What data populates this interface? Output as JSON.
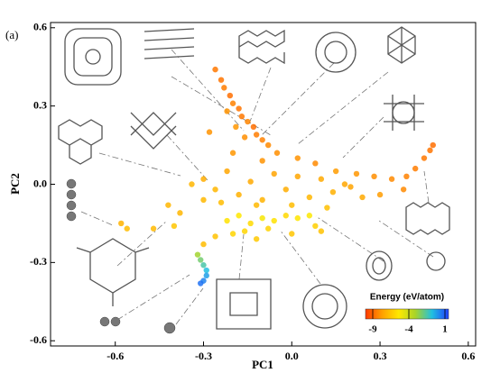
{
  "chart_data": {
    "type": "scatter",
    "panel_label": "(a)",
    "xlabel": "PC1",
    "ylabel": "PC2",
    "xlim": [
      -0.82,
      0.625
    ],
    "ylim": [
      -0.62,
      0.62
    ],
    "xticks": [
      -0.6,
      -0.3,
      {
        "value": 0,
        "label": "0.0"
      },
      0.3,
      0.6
    ],
    "yticks": [
      -0.6,
      -0.3,
      {
        "value": 0,
        "label": "0.0"
      },
      0.3,
      0.6
    ],
    "colorbar": {
      "label": "Energy (eV/atom)",
      "clim": [
        -10,
        1.5
      ],
      "ticks": [
        -9,
        -4,
        1
      ],
      "colormap": [
        "#ff3a00",
        "#ffa000",
        "#ffe800",
        "#a8d428",
        "#20c0e0",
        "#2040ff"
      ]
    },
    "x": [
      -0.26,
      -0.24,
      -0.23,
      -0.21,
      -0.2,
      -0.18,
      -0.17,
      -0.15,
      -0.13,
      -0.12,
      -0.1,
      -0.08,
      -0.22,
      -0.19,
      -0.16,
      -0.28,
      -0.05,
      0.02,
      0.08,
      -0.2,
      -0.1,
      0.15,
      0.22,
      0.28,
      0.34,
      0.39,
      0.42,
      0.45,
      0.47,
      0.48,
      0.38,
      0.3,
      0.2,
      -0.3,
      -0.26,
      -0.22,
      -0.18,
      -0.14,
      -0.1,
      -0.06,
      -0.02,
      0.02,
      0.06,
      0.1,
      0.14,
      0.18,
      0.24,
      -0.24,
      -0.12,
      0,
      0.12,
      -0.34,
      -0.3,
      -0.22,
      -0.18,
      -0.14,
      -0.1,
      -0.06,
      -0.02,
      0.02,
      0.06,
      -0.16,
      -0.08,
      0.08,
      -0.2,
      -0.26,
      -0.3,
      -0.12,
      0,
      0.1,
      -0.38,
      -0.42,
      -0.56,
      -0.58,
      -0.47,
      -0.4,
      -0.32,
      -0.31,
      -0.3,
      -0.29,
      -0.29,
      -0.3,
      -0.31
    ],
    "y": [
      0.44,
      0.4,
      0.37,
      0.34,
      0.31,
      0.29,
      0.26,
      0.24,
      0.22,
      0.19,
      0.17,
      0.15,
      0.28,
      0.22,
      0.18,
      0.2,
      0.12,
      0.1,
      0.08,
      0.12,
      0.09,
      0.05,
      0.04,
      0.03,
      0.02,
      0.03,
      0.06,
      0.1,
      0.13,
      0.15,
      -0.02,
      -0.04,
      -0.01,
      0.02,
      -0.02,
      0.05,
      -0.04,
      0.01,
      -0.06,
      0.04,
      -0.02,
      0.03,
      -0.05,
      0.02,
      -0.03,
      0,
      -0.05,
      -0.07,
      -0.08,
      -0.08,
      -0.09,
      0,
      -0.06,
      -0.14,
      -0.12,
      -0.15,
      -0.13,
      -0.14,
      -0.12,
      -0.13,
      -0.12,
      -0.18,
      -0.17,
      -0.16,
      -0.19,
      -0.2,
      -0.23,
      -0.21,
      -0.19,
      -0.18,
      -0.11,
      -0.08,
      -0.17,
      -0.15,
      -0.17,
      -0.16,
      -0.27,
      -0.29,
      -0.31,
      -0.33,
      -0.35,
      -0.37,
      -0.38
    ],
    "c": [
      -8.6,
      -8.7,
      -8.5,
      -8.8,
      -8.4,
      -8.7,
      -8.6,
      -8.3,
      -8.8,
      -8.5,
      -8.4,
      -8.2,
      -8,
      -7.9,
      -8.1,
      -8,
      -8.1,
      -8,
      -8.2,
      -7.9,
      -8,
      -7.8,
      -7.9,
      -8.1,
      -8.2,
      -8.4,
      -8.5,
      -8.6,
      -8.7,
      -8.8,
      -8.2,
      -7.8,
      -7.6,
      -7.3,
      -7,
      -7.5,
      -7.2,
      -7.4,
      -7.1,
      -7.6,
      -7.3,
      -7.5,
      -7,
      -7.4,
      -7.2,
      -7.5,
      -7.4,
      -6.8,
      -6.9,
      -6.8,
      -6.7,
      -7,
      -6.9,
      -5.6,
      -5.4,
      -5.8,
      -5.2,
      -5.6,
      -5.9,
      -5.5,
      -5.3,
      -6,
      -6.1,
      -6.2,
      -6,
      -6.6,
      -6.8,
      -6.4,
      -6.5,
      -6.6,
      -7,
      -7,
      -6.8,
      -7.1,
      -6.9,
      -6.5,
      -3,
      -2.2,
      -1.5,
      -0.8,
      -0.2,
      0.3,
      0.6
    ]
  }
}
